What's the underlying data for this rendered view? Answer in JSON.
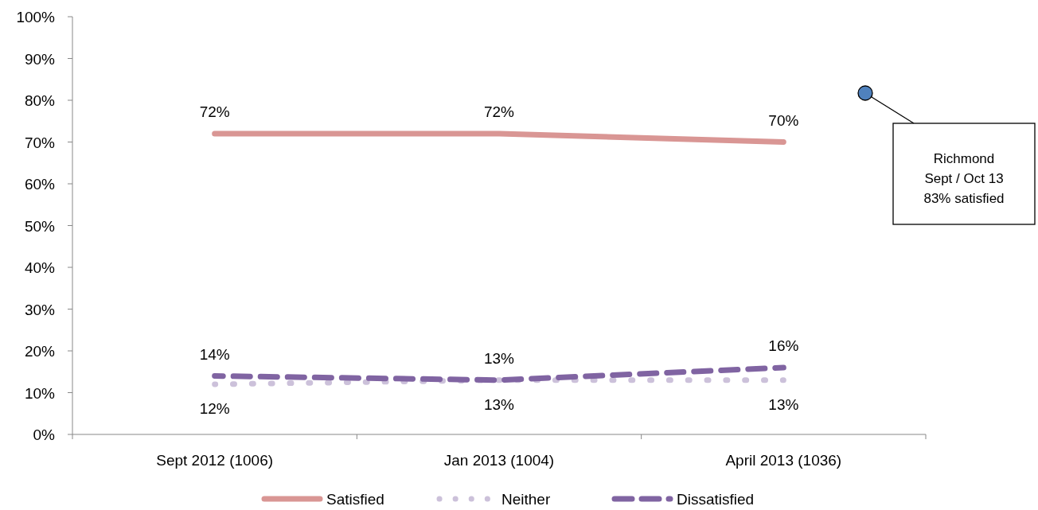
{
  "chart_data": {
    "type": "line",
    "categories": [
      "Sept 2012 (1006)",
      "Jan 2013 (1004)",
      "April 2013 (1036)"
    ],
    "series": [
      {
        "name": "Satisfied",
        "color": "#d99694",
        "values": [
          72,
          72,
          70
        ],
        "value_labels": [
          "72%",
          "72%",
          "70%"
        ],
        "line_style": "solid"
      },
      {
        "name": "Neither",
        "color": "#ccc1da",
        "values": [
          12,
          13,
          13
        ],
        "value_labels": [
          "12%",
          "13%",
          "13%"
        ],
        "line_style": "dotted"
      },
      {
        "name": "Dissatisfied",
        "color": "#8064a2",
        "values": [
          14,
          13,
          16
        ],
        "value_labels": [
          "14%",
          "13%",
          "16%"
        ],
        "line_style": "dashed"
      }
    ],
    "ylim": [
      0,
      100
    ],
    "yticks": [
      {
        "value": 0,
        "label": "0%"
      },
      {
        "value": 10,
        "label": "10%"
      },
      {
        "value": 20,
        "label": "20%"
      },
      {
        "value": 30,
        "label": "30%"
      },
      {
        "value": 40,
        "label": "40%"
      },
      {
        "value": 50,
        "label": "50%"
      },
      {
        "value": 60,
        "label": "60%"
      },
      {
        "value": 70,
        "label": "70%"
      },
      {
        "value": 80,
        "label": "80%"
      },
      {
        "value": 90,
        "label": "90%"
      },
      {
        "value": 100,
        "label": "100%"
      }
    ],
    "grid": false,
    "legend": "bottom",
    "marker": "none",
    "annotations": [
      "Richmond\nSept / Oct 13\n83% satisfied"
    ]
  }
}
